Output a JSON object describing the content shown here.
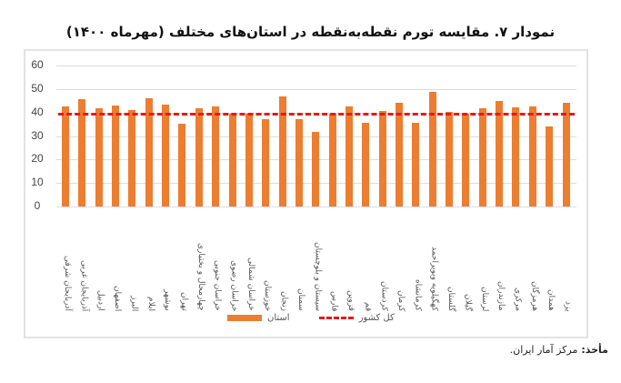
{
  "title": "نمودار ۷. مقایسه تورم نقطه‌به‌نقطه در استان‌های مختلف (مهرماه ۱۴۰۰)",
  "legend": {
    "series_label": "استان",
    "reference_label": "کل کشور"
  },
  "source": {
    "label": "مأخذ:",
    "text": "مرکز آمار ایران."
  },
  "colors": {
    "bar": "#ED7D31",
    "reference_line": "#E21B1B",
    "grid": "#DCDCDC"
  },
  "chart_data": {
    "type": "bar",
    "title": "نمودار ۷. مقایسه تورم نقطه‌به‌نقطه در استان‌های مختلف (مهرماه ۱۴۰۰)",
    "xlabel": "",
    "ylabel": "",
    "ylim": [
      0,
      60
    ],
    "yticks": [
      0,
      10,
      20,
      30,
      40,
      50,
      60
    ],
    "grid": true,
    "legend_position": "bottom",
    "categories": [
      "آذربایجان شرقی",
      "آذربایجان غربی",
      "اردبیل",
      "اصفهان",
      "البرز",
      "ایلام",
      "بوشهر",
      "تهران",
      "چهارمحال و بختیاری",
      "خراسان جنوبی",
      "خراسان رضوی",
      "خراسان شمالی",
      "خوزستان",
      "زنجان",
      "سمنان",
      "سیستان و بلوچستان",
      "فارس",
      "قزوین",
      "قم",
      "کردستان",
      "کرمان",
      "کرمانشاه",
      "کهگیلویه وبویراحمد",
      "گلستان",
      "گیلان",
      "لرستان",
      "مازندران",
      "مرکزی",
      "هرمزگان",
      "همدان",
      "یزد"
    ],
    "series": [
      {
        "name": "استان",
        "type": "bar",
        "values": [
          42.4,
          45.6,
          41.7,
          43.0,
          41.2,
          46.0,
          43.4,
          35.4,
          41.9,
          42.5,
          39.5,
          39.3,
          37.2,
          46.9,
          37.2,
          31.8,
          39.5,
          42.6,
          35.7,
          40.7,
          44.2,
          35.7,
          48.6,
          40.2,
          39.5,
          41.9,
          45.1,
          42.1,
          42.6,
          34.1,
          44.2
        ]
      },
      {
        "name": "کل کشور",
        "type": "line",
        "style": "dashed",
        "value": 39.5
      }
    ]
  }
}
